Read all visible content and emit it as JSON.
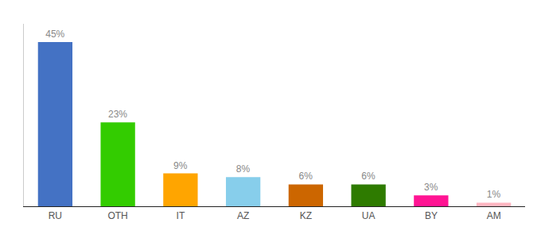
{
  "chart_data": {
    "type": "bar",
    "categories": [
      "RU",
      "OTH",
      "IT",
      "AZ",
      "KZ",
      "UA",
      "BY",
      "AM"
    ],
    "values": [
      45,
      23,
      9,
      8,
      6,
      6,
      3,
      1
    ],
    "value_labels": [
      "45%",
      "23%",
      "9%",
      "8%",
      "6%",
      "6%",
      "3%",
      "1%"
    ],
    "colors": [
      "#4472C4",
      "#33CC00",
      "#FFA500",
      "#87CEEB",
      "#CC6600",
      "#2E7B00",
      "#FF1493",
      "#FFB6C1"
    ],
    "ylim": [
      0,
      50
    ],
    "data_labels": true,
    "tick_labels": "x",
    "grid": false
  }
}
